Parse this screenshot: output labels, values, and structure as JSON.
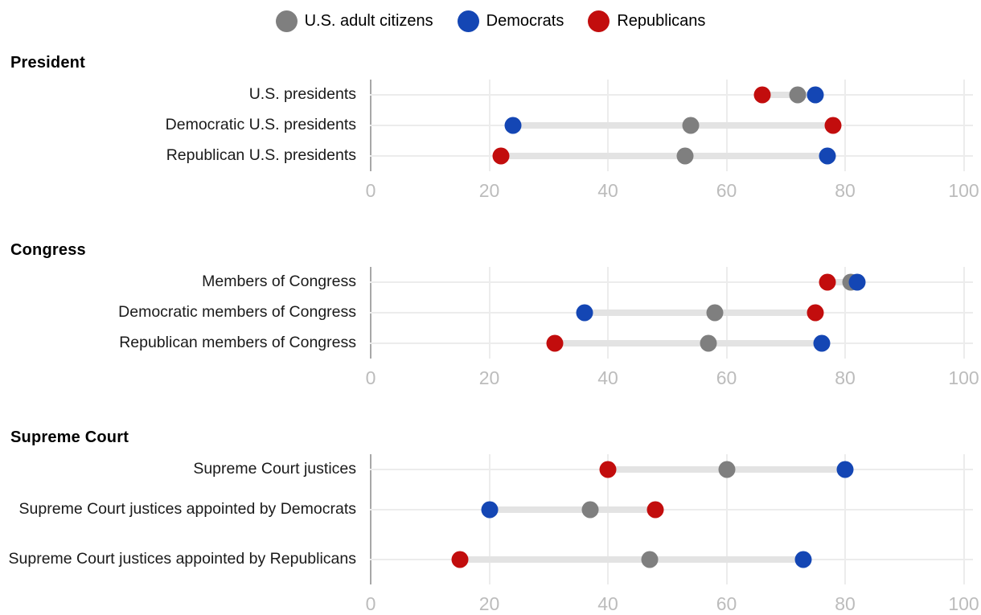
{
  "legend": {
    "items": [
      {
        "key": "citizens",
        "label": "U.S. adult citizens",
        "color": "#7f7f7f"
      },
      {
        "key": "democrats",
        "label": "Democrats",
        "color": "#1446b4"
      },
      {
        "key": "republicans",
        "label": "Republicans",
        "color": "#c20d0d"
      }
    ]
  },
  "colors": {
    "citizens": "#7f7f7f",
    "democrats": "#1446b4",
    "republicans": "#c20d0d",
    "connector": "#e3e3e3",
    "gridline": "#ececec",
    "axis_line": "#a8a8a8",
    "tick_text": "#bcbcbc"
  },
  "chart_data": {
    "type": "scatter",
    "subtype": "dumbbell-dot-plot",
    "xlim": [
      0,
      100
    ],
    "ticks": [
      0,
      20,
      40,
      60,
      80,
      100
    ],
    "grid": true,
    "legend_position": "top-center",
    "series_keys": [
      "citizens",
      "democrats",
      "republicans"
    ],
    "groups": [
      {
        "header": "President",
        "rows": [
          {
            "label": "U.S. presidents",
            "citizens": 72,
            "democrats": 75,
            "republicans": 66
          },
          {
            "label": "Democratic U.S. presidents",
            "citizens": 54,
            "democrats": 24,
            "republicans": 78
          },
          {
            "label": "Republican U.S. presidents",
            "citizens": 53,
            "democrats": 77,
            "republicans": 22
          }
        ]
      },
      {
        "header": "Congress",
        "rows": [
          {
            "label": "Members of Congress",
            "citizens": 81,
            "democrats": 82,
            "republicans": 77
          },
          {
            "label": "Democratic members of Congress",
            "citizens": 58,
            "democrats": 36,
            "republicans": 75
          },
          {
            "label": "Republican members of Congress",
            "citizens": 57,
            "democrats": 76,
            "republicans": 31
          }
        ]
      },
      {
        "header": "Supreme Court",
        "rows": [
          {
            "label": "Supreme Court justices",
            "citizens": 60,
            "democrats": 80,
            "republicans": 40
          },
          {
            "label": "Supreme Court justices appointed by Democrats",
            "citizens": 37,
            "democrats": 20,
            "republicans": 48
          },
          {
            "label": "Supreme Court justices appointed by Republicans",
            "citizens": 47,
            "democrats": 73,
            "republicans": 15
          }
        ]
      }
    ]
  }
}
